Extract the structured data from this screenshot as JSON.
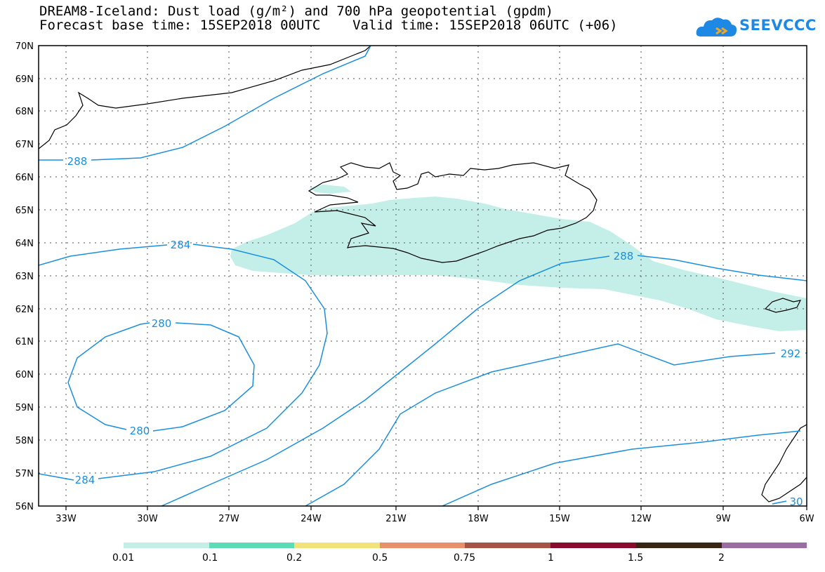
{
  "header": {
    "title_line1": "DREAM8-Iceland: Dust load (g/m²) and 700 hPa geopotential (gpdm)",
    "title_line2": "Forecast base time: 15SEP2018 00UTC    Valid time: 15SEP2018 06UTC (+06)",
    "logo_text": "SEEVCCC"
  },
  "map": {
    "lat_labels": [
      "70N",
      "69N",
      "68N",
      "67N",
      "66N",
      "65N",
      "64N",
      "63N",
      "62N",
      "61N",
      "60N",
      "59N",
      "58N",
      "57N",
      "56N"
    ],
    "lon_labels": [
      "33W",
      "30W",
      "27W",
      "24W",
      "21W",
      "18W",
      "15W",
      "12W",
      "9W",
      "6W"
    ],
    "contour_labels": [
      "288",
      "284",
      "280",
      "280",
      "284",
      "288",
      "292",
      "30"
    ],
    "colors": {
      "contour": "#1a8fe0",
      "dust_low": "#c3efe8",
      "coast": "#000000"
    }
  },
  "legend": {
    "labels": [
      "0.01",
      "0.1",
      "0.2",
      "0.5",
      "0.75",
      "1",
      "1.5",
      "2"
    ],
    "colors": [
      "#c3efe8",
      "#5cdcb4",
      "#f2e27a",
      "#e8906a",
      "#a65448",
      "#880b2f",
      "#3a2515",
      "#9b6ea3"
    ]
  }
}
